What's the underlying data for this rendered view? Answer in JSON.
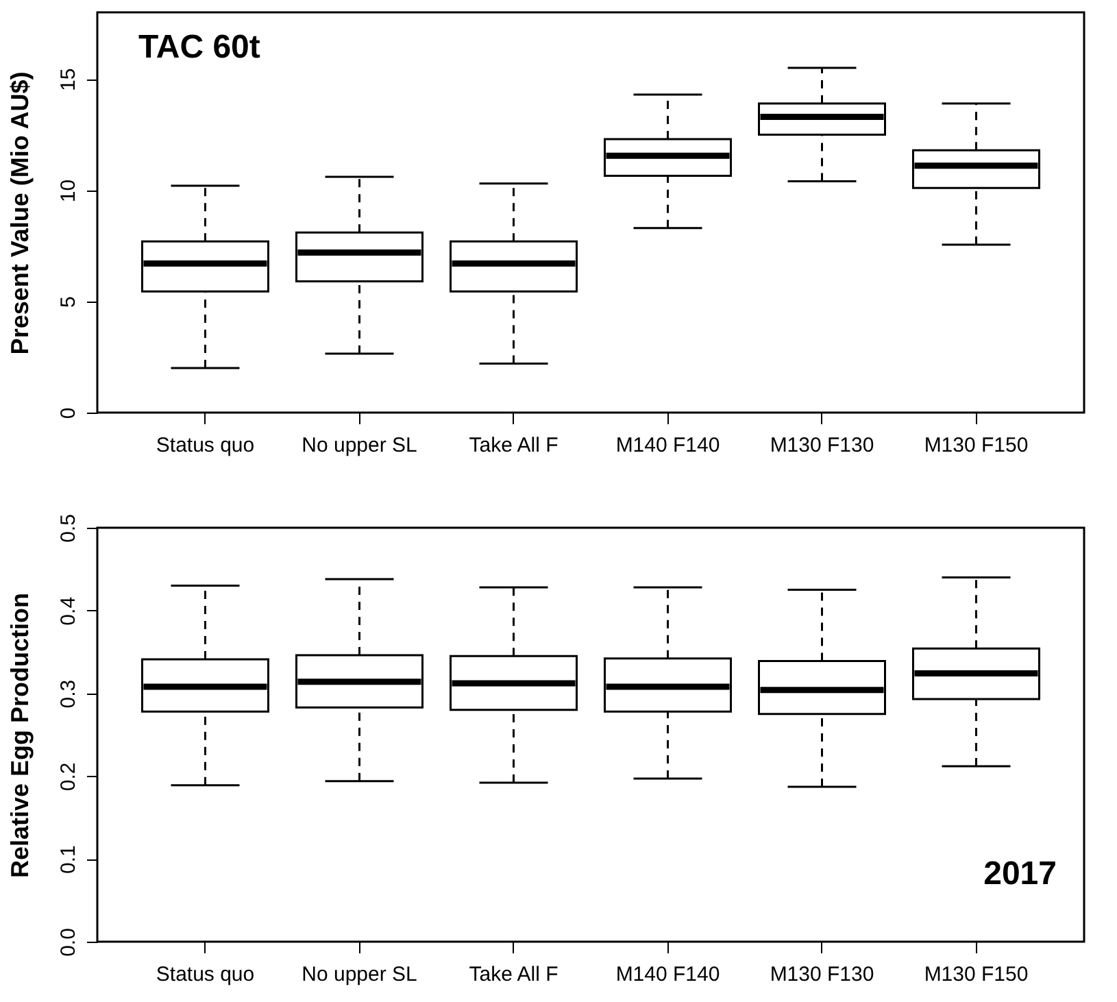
{
  "chart_data": [
    {
      "type": "box",
      "ylabel": "Present Value (Mio AU$)",
      "annotations": [
        "TAC 60t"
      ],
      "categories": [
        "Status quo",
        "No upper SL",
        "Take All F",
        "M140 F140",
        "M130 F130",
        "M130 F150"
      ],
      "ylim": [
        0,
        18
      ],
      "yticks": [
        0,
        5,
        10,
        15
      ],
      "grid": false,
      "boxes": [
        {
          "low": 2.0,
          "q1": 5.45,
          "median": 6.7,
          "q3": 7.7,
          "high": 10.2
        },
        {
          "low": 2.65,
          "q1": 5.9,
          "median": 7.2,
          "q3": 8.1,
          "high": 10.6
        },
        {
          "low": 2.2,
          "q1": 5.45,
          "median": 6.7,
          "q3": 7.7,
          "high": 10.3
        },
        {
          "low": 8.3,
          "q1": 10.65,
          "median": 11.55,
          "q3": 12.3,
          "high": 14.3
        },
        {
          "low": 10.4,
          "q1": 12.5,
          "median": 13.3,
          "q3": 13.9,
          "high": 15.5
        },
        {
          "low": 7.55,
          "q1": 10.1,
          "median": 11.1,
          "q3": 11.8,
          "high": 13.9
        }
      ]
    },
    {
      "type": "box",
      "ylabel": "Relative Egg Production",
      "annotations": [
        "2017"
      ],
      "categories": [
        "Status quo",
        "No upper SL",
        "Take All F",
        "M140 F140",
        "M130 F130",
        "M130 F150"
      ],
      "ylim": [
        0,
        0.5
      ],
      "yticks": [
        {
          "value": 0,
          "label": "0.0"
        },
        0.1,
        0.2,
        0.3,
        0.4,
        0.5
      ],
      "grid": false,
      "boxes": [
        {
          "low": 0.189,
          "q1": 0.278,
          "median": 0.308,
          "q3": 0.341,
          "high": 0.43
        },
        {
          "low": 0.194,
          "q1": 0.283,
          "median": 0.314,
          "q3": 0.346,
          "high": 0.438
        },
        {
          "low": 0.192,
          "q1": 0.28,
          "median": 0.312,
          "q3": 0.345,
          "high": 0.428
        },
        {
          "low": 0.197,
          "q1": 0.278,
          "median": 0.308,
          "q3": 0.342,
          "high": 0.428
        },
        {
          "low": 0.187,
          "q1": 0.275,
          "median": 0.304,
          "q3": 0.339,
          "high": 0.425
        },
        {
          "low": 0.212,
          "q1": 0.293,
          "median": 0.324,
          "q3": 0.354,
          "high": 0.44
        }
      ]
    }
  ]
}
